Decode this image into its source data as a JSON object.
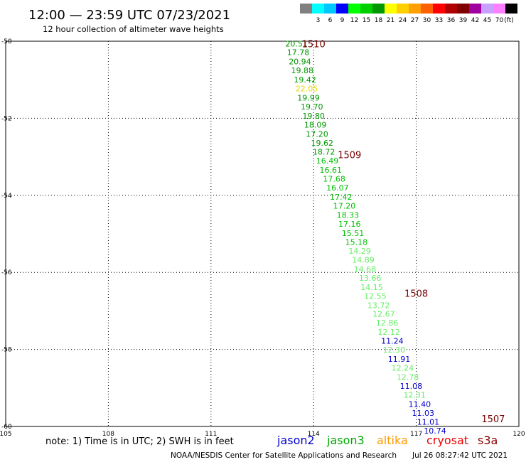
{
  "header": {
    "title": "12:00 — 23:59 UTC 07/23/2021",
    "subtitle": "12 hour collection of altimeter wave heights"
  },
  "colorbar": {
    "unit_label": "(ft)",
    "bins": [
      {
        "label": "",
        "color": "#808080"
      },
      {
        "label": "3",
        "color": "#00ffff"
      },
      {
        "label": "6",
        "color": "#00c8ff"
      },
      {
        "label": "9",
        "color": "#0000ff"
      },
      {
        "label": "12",
        "color": "#00ff00"
      },
      {
        "label": "15",
        "color": "#00d000"
      },
      {
        "label": "18",
        "color": "#009800"
      },
      {
        "label": "21",
        "color": "#ffff00"
      },
      {
        "label": "24",
        "color": "#ffd000"
      },
      {
        "label": "27",
        "color": "#ffa000"
      },
      {
        "label": "30",
        "color": "#ff6000"
      },
      {
        "label": "33",
        "color": "#ff0000"
      },
      {
        "label": "36",
        "color": "#b00000"
      },
      {
        "label": "39",
        "color": "#800000"
      },
      {
        "label": "42",
        "color": "#a000a0"
      },
      {
        "label": "45",
        "color": "#c8a0ff"
      },
      {
        "label": "70",
        "color": "#ff80ff"
      },
      {
        "label": "",
        "color": "#000000"
      }
    ]
  },
  "footer": {
    "note": "note: 1) Time is in UTC; 2) SWH is in feet",
    "credit": "NOAA/NESDIS Center for Satellite Applications and Research",
    "timestamp": "Jul 26 08:27:42 UTC 2021",
    "satellites": [
      {
        "name": "jason2",
        "color": "#0000cc"
      },
      {
        "name": "jason3",
        "color": "#00aa00"
      },
      {
        "name": "altika",
        "color": "#ff9900"
      },
      {
        "name": "cryosat",
        "color": "#ee0000"
      },
      {
        "name": "s3a",
        "color": "#880000"
      }
    ]
  },
  "chart_data": {
    "type": "scatter",
    "xlim": [
      105,
      120
    ],
    "ylim": [
      -60,
      -50
    ],
    "x_ticks": [
      105,
      108,
      111,
      114,
      117,
      120
    ],
    "y_ticks": [
      -50,
      -52,
      -54,
      -56,
      -58,
      -60
    ],
    "x_tick_labels": [
      "105",
      "108",
      "111",
      "114",
      "117",
      "120"
    ],
    "y_tick_labels": [
      "-50",
      "-52",
      "-54",
      "-56",
      "-58",
      "-60"
    ],
    "grid": true,
    "label_color": "#7a0000",
    "time_labels": [
      {
        "text": "1510",
        "lon": 114.0,
        "lat": -50.06
      },
      {
        "text": "1509",
        "lon": 115.05,
        "lat": -52.94
      },
      {
        "text": "1508",
        "lon": 117.0,
        "lat": -56.54
      },
      {
        "text": "1507",
        "lon": 119.25,
        "lat": -59.8
      }
    ],
    "points": [
      {
        "lon": 113.5,
        "lat": -50.06,
        "swh": 20.51,
        "color": "#009800"
      },
      {
        "lon": 113.55,
        "lat": -50.29,
        "swh": 17.78,
        "color": "#009800"
      },
      {
        "lon": 113.6,
        "lat": -50.53,
        "swh": 20.94,
        "color": "#009800"
      },
      {
        "lon": 113.67,
        "lat": -50.76,
        "swh": 19.88,
        "color": "#009800"
      },
      {
        "lon": 113.75,
        "lat": -51.0,
        "swh": 19.42,
        "color": "#009800"
      },
      {
        "lon": 113.8,
        "lat": -51.23,
        "swh": 22.05,
        "color": "#e8d800"
      },
      {
        "lon": 113.85,
        "lat": -51.47,
        "swh": 19.99,
        "color": "#009800"
      },
      {
        "lon": 113.95,
        "lat": -51.7,
        "swh": 19.7,
        "color": "#009800"
      },
      {
        "lon": 114.0,
        "lat": -51.94,
        "swh": 19.8,
        "color": "#009800"
      },
      {
        "lon": 114.05,
        "lat": -52.17,
        "swh": 18.09,
        "color": "#009800"
      },
      {
        "lon": 114.1,
        "lat": -52.41,
        "swh": 17.2,
        "color": "#009800"
      },
      {
        "lon": 114.25,
        "lat": -52.64,
        "swh": 19.62,
        "color": "#009800"
      },
      {
        "lon": 114.3,
        "lat": -52.87,
        "swh": 18.72,
        "color": "#009800"
      },
      {
        "lon": 114.4,
        "lat": -53.1,
        "swh": 16.49,
        "color": "#00c000"
      },
      {
        "lon": 114.5,
        "lat": -53.34,
        "swh": 16.61,
        "color": "#00c000"
      },
      {
        "lon": 114.6,
        "lat": -53.57,
        "swh": 17.68,
        "color": "#00c000"
      },
      {
        "lon": 114.7,
        "lat": -53.8,
        "swh": 16.07,
        "color": "#00c000"
      },
      {
        "lon": 114.8,
        "lat": -54.04,
        "swh": 17.42,
        "color": "#00c000"
      },
      {
        "lon": 114.9,
        "lat": -54.27,
        "swh": 17.2,
        "color": "#00c000"
      },
      {
        "lon": 115.0,
        "lat": -54.51,
        "swh": 18.33,
        "color": "#00c000"
      },
      {
        "lon": 115.05,
        "lat": -54.74,
        "swh": 17.16,
        "color": "#00c000"
      },
      {
        "lon": 115.15,
        "lat": -54.98,
        "swh": 15.51,
        "color": "#00c000"
      },
      {
        "lon": 115.25,
        "lat": -55.21,
        "swh": 15.18,
        "color": "#00c000"
      },
      {
        "lon": 115.35,
        "lat": -55.44,
        "swh": 14.29,
        "color": "#66ee66"
      },
      {
        "lon": 115.45,
        "lat": -55.67,
        "swh": 14.89,
        "color": "#66ee66"
      },
      {
        "lon": 115.5,
        "lat": -55.91,
        "swh": 14.68,
        "color": "#66ee66"
      },
      {
        "lon": 115.65,
        "lat": -56.14,
        "swh": 13.66,
        "color": "#66ee66"
      },
      {
        "lon": 115.7,
        "lat": -56.38,
        "swh": 14.15,
        "color": "#66ee66"
      },
      {
        "lon": 115.8,
        "lat": -56.61,
        "swh": 12.55,
        "color": "#66ee66"
      },
      {
        "lon": 115.9,
        "lat": -56.85,
        "swh": 13.72,
        "color": "#66ee66"
      },
      {
        "lon": 116.05,
        "lat": -57.08,
        "swh": 12.67,
        "color": "#66ee66"
      },
      {
        "lon": 116.15,
        "lat": -57.31,
        "swh": 12.86,
        "color": "#66ee66"
      },
      {
        "lon": 116.2,
        "lat": -57.55,
        "swh": 12.12,
        "color": "#66ee66"
      },
      {
        "lon": 116.3,
        "lat": -57.78,
        "swh": 11.24,
        "color": "#0000cc"
      },
      {
        "lon": 116.35,
        "lat": -58.01,
        "swh": 12.3,
        "color": "#66ee66"
      },
      {
        "lon": 116.5,
        "lat": -58.25,
        "swh": 11.91,
        "color": "#0000cc"
      },
      {
        "lon": 116.6,
        "lat": -58.48,
        "swh": 12.24,
        "color": "#66ee66"
      },
      {
        "lon": 116.75,
        "lat": -58.72,
        "swh": 12.78,
        "color": "#66ee66"
      },
      {
        "lon": 116.85,
        "lat": -58.95,
        "swh": 11.08,
        "color": "#0000cc"
      },
      {
        "lon": 116.95,
        "lat": -59.18,
        "swh": 12.31,
        "color": "#66ee66"
      },
      {
        "lon": 117.1,
        "lat": -59.42,
        "swh": 11.4,
        "color": "#0000cc"
      },
      {
        "lon": 117.2,
        "lat": -59.65,
        "swh": 11.03,
        "color": "#0000cc"
      },
      {
        "lon": 117.35,
        "lat": -59.88,
        "swh": 11.01,
        "color": "#0000cc"
      },
      {
        "lon": 117.55,
        "lat": -60.11,
        "swh": 10.74,
        "color": "#0000cc"
      }
    ]
  }
}
